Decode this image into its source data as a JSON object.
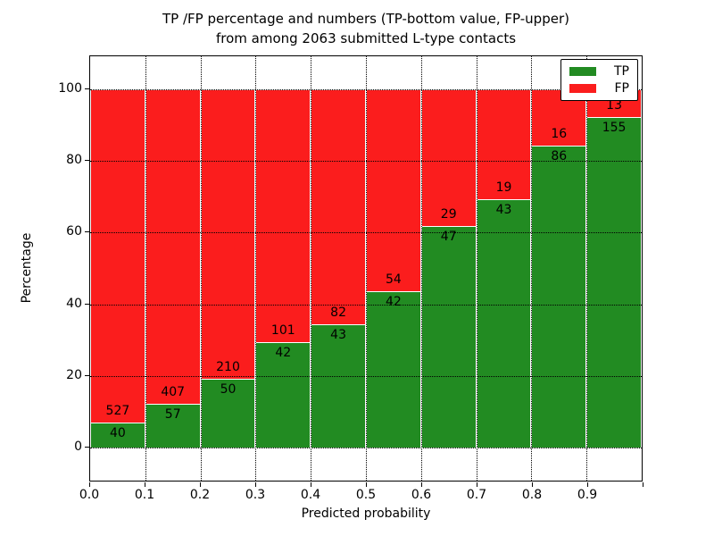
{
  "figure": {
    "title_line1": "TP /FP percentage and numbers (TP-bottom value, FP-upper)",
    "title_line2": "from among 2063 submitted L-type contacts"
  },
  "chart_data": {
    "type": "bar",
    "subtype": "stacked-percentage",
    "title": "TP /FP percentage and numbers (TP-bottom value, FP-upper)\nfrom among 2063 submitted L-type contacts",
    "xlabel": "Predicted probability",
    "ylabel": "Percentage",
    "x_tick_labels": [
      "0.0",
      "0.1",
      "0.2",
      "0.3",
      "0.4",
      "0.5",
      "0.6",
      "0.7",
      "0.8",
      "0.9"
    ],
    "y_tick_labels": [
      "0",
      "20",
      "40",
      "60",
      "80",
      "100"
    ],
    "y_ticks": [
      0,
      20,
      40,
      60,
      80,
      100
    ],
    "xlim": [
      0.0,
      1.0
    ],
    "ylim": [
      -9.7,
      109.5
    ],
    "bin_width": 0.1,
    "bin_starts": [
      0.0,
      0.1,
      0.2,
      0.3,
      0.4,
      0.5,
      0.6,
      0.7,
      0.8,
      0.9
    ],
    "series": [
      {
        "name": "TP",
        "color": "#228b22",
        "counts": [
          40,
          57,
          50,
          42,
          43,
          42,
          47,
          43,
          86,
          155
        ]
      },
      {
        "name": "FP",
        "color": "#fb1d1d",
        "counts": [
          527,
          407,
          210,
          101,
          82,
          54,
          29,
          19,
          16,
          13
        ]
      }
    ],
    "tp_percent": [
      7.1,
      12.3,
      19.2,
      29.4,
      34.4,
      43.8,
      61.8,
      69.4,
      84.3,
      92.3
    ],
    "total_contacts": 2063,
    "legend": {
      "position": "upper right",
      "entries": [
        "TP",
        "FP"
      ]
    },
    "grid": "dotted"
  }
}
